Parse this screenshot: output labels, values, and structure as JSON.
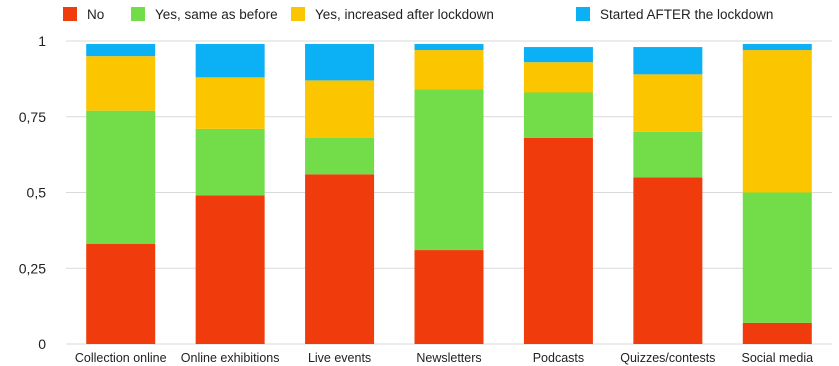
{
  "chart_data": {
    "type": "bar",
    "stacked": true,
    "categories": [
      "Collection online",
      "Online exhibitions",
      "Live events",
      "Newsletters",
      "Podcasts",
      "Quizzes/contests",
      "Social media"
    ],
    "series": [
      {
        "name": "No",
        "color": "#f03c0c",
        "values": [
          0.33,
          0.49,
          0.56,
          0.31,
          0.68,
          0.55,
          0.07
        ]
      },
      {
        "name": "Yes, same as before",
        "color": "#72dd48",
        "values": [
          0.44,
          0.22,
          0.12,
          0.53,
          0.15,
          0.15,
          0.43
        ]
      },
      {
        "name": "Yes, increased after lockdown",
        "color": "#fbc500",
        "values": [
          0.18,
          0.17,
          0.19,
          0.13,
          0.1,
          0.19,
          0.47
        ]
      },
      {
        "name": "Started AFTER the lockdown",
        "color": "#0bb0f5",
        "values": [
          0.04,
          0.11,
          0.12,
          0.02,
          0.05,
          0.09,
          0.02
        ]
      }
    ],
    "yticks": [
      "0",
      "0,25",
      "0,5",
      "0,75",
      "1"
    ],
    "ytick_values": [
      0,
      0.25,
      0.5,
      0.75,
      1
    ],
    "ylim": [
      0,
      1
    ],
    "grid": true,
    "legend_position": "top-left",
    "title": "",
    "xlabel": "",
    "ylabel": ""
  }
}
